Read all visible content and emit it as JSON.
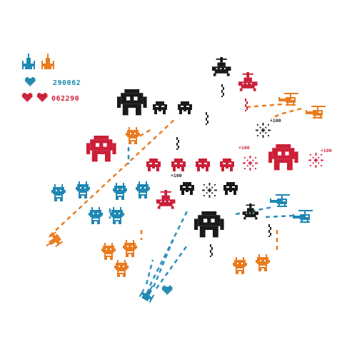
{
  "hud": {
    "player1_score": "290062",
    "player2_score": "062290"
  },
  "bonus": {
    "a": "+100",
    "b": "+100",
    "c": "+100",
    "d": "+100"
  },
  "colors": {
    "black": "#1a1a1a",
    "red": "#cc1f38",
    "orange": "#ea7c1f",
    "blue": "#1f88b3",
    "cyan": "#2b8fbd"
  },
  "icons": [
    "ship-icon",
    "heart-icon",
    "alien-icon",
    "robot-icon",
    "saucer-icon",
    "helicopter-icon",
    "explosion-icon",
    "bomb-icon"
  ]
}
